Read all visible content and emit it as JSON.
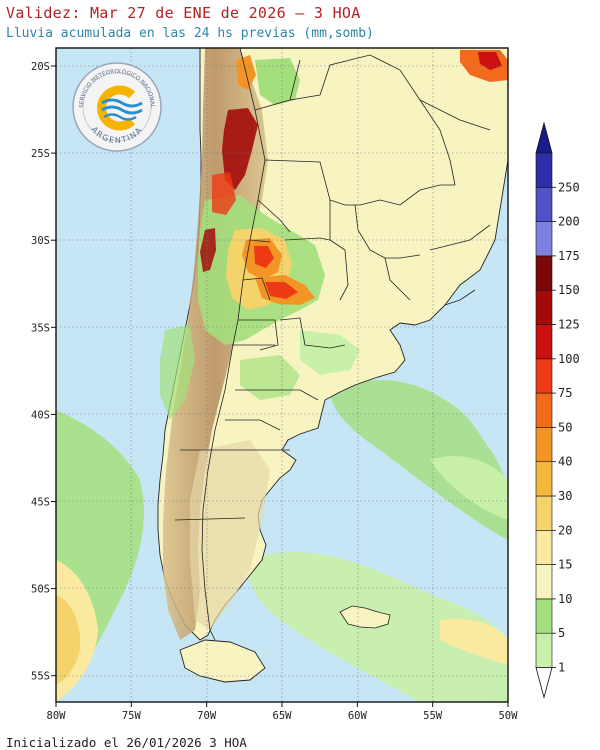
{
  "header": {
    "title": "Validez: Mar 27 de ENE de 2026 – 3 HOA",
    "subtitle": "Lluvia acumulada en las 24 hs previas (mm,somb)"
  },
  "footer": {
    "init": "Inicializado el 26/01/2026 3 HOA"
  },
  "logo": {
    "top_text": "SERVICIO METEOROLÓGICO NACIONAL",
    "bottom_text": "ARGENTINA"
  },
  "axes": {
    "lat_labels": [
      "20S",
      "25S",
      "30S",
      "35S",
      "40S",
      "45S",
      "50S",
      "55S"
    ],
    "lon_labels": [
      "80W",
      "75W",
      "70W",
      "65W",
      "60W",
      "55W",
      "50W"
    ]
  },
  "colorbar": {
    "levels": [
      "1",
      "5",
      "10",
      "15",
      "20",
      "30",
      "40",
      "50",
      "75",
      "100",
      "125",
      "150",
      "175",
      "200",
      "250"
    ],
    "colors": [
      "#c9f0a8",
      "#a3df7c",
      "#f7f4c2",
      "#f9eaa0",
      "#f4d36a",
      "#f2b73c",
      "#f39524",
      "#f36a1c",
      "#ed3a14",
      "#cc1010",
      "#a30b0b",
      "#7b0808",
      "#8080e0",
      "#5050c8",
      "#2e2ea8"
    ],
    "top_color": "#1a1a8a"
  },
  "colors": {
    "ocean": "#c7e6f5",
    "land_low": "#f7f4c2",
    "andes": "#c8a070",
    "title_red": "#b22222",
    "subtitle_teal": "#2e86a8"
  }
}
